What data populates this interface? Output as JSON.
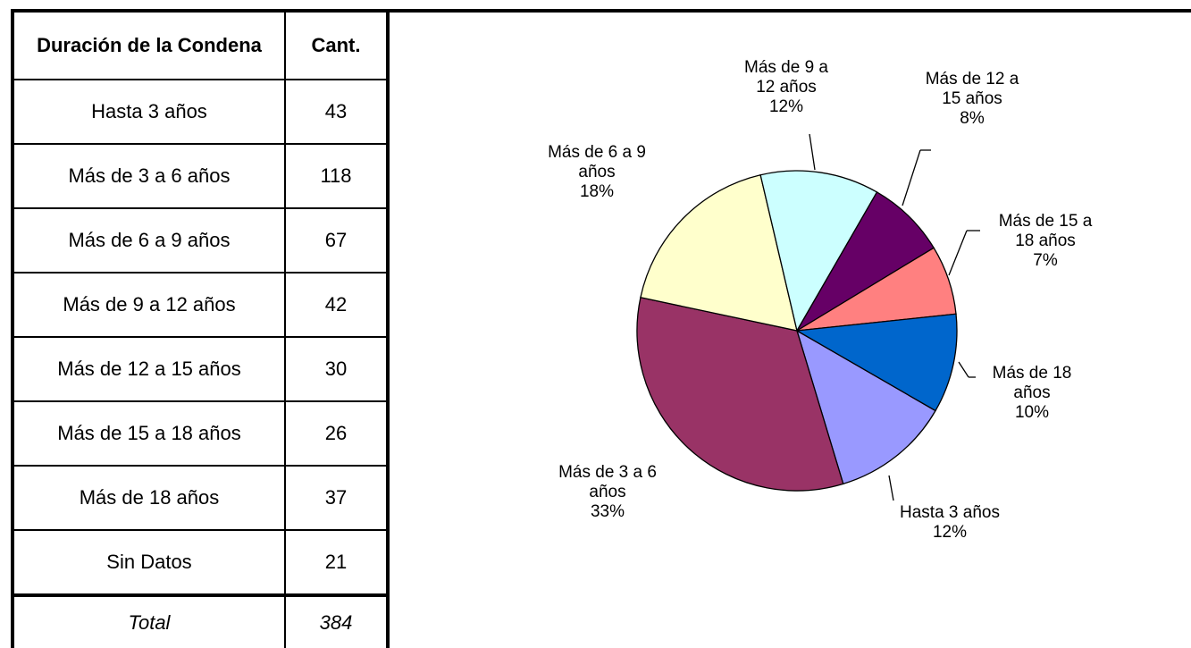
{
  "table": {
    "header": [
      "Duración de la Condena",
      "Cant."
    ],
    "rows": [
      [
        "Hasta 3 años",
        43
      ],
      [
        "Más de 3 a 6 años",
        118
      ],
      [
        "Más de 6 a 9 años",
        67
      ],
      [
        "Más de 9 a 12 años",
        42
      ],
      [
        "Más de 12 a 15 años",
        30
      ],
      [
        "Más de 15 a 18 años",
        26
      ],
      [
        "Más de 18 años",
        37
      ],
      [
        "Sin Datos",
        21
      ]
    ],
    "total": [
      "Total",
      384
    ]
  },
  "chart_data": {
    "type": "pie",
    "categories": [
      "Hasta 3 años",
      "Más de 3 a 6 años",
      "Más de 6 a 9 años",
      "Más de 9 a 12 años",
      "Más de 12 a 15 años",
      "Más de 15 a 18 años",
      "Más de 18 años"
    ],
    "values": [
      12,
      33,
      18,
      12,
      8,
      7,
      10
    ],
    "value_labels": [
      "12%",
      "33%",
      "18%",
      "12%",
      "8%",
      "7%",
      "10%"
    ],
    "colors": [
      "#9999ff",
      "#993366",
      "#ffffcc",
      "#ccffff",
      "#660066",
      "#ff8080",
      "#0066cc"
    ]
  }
}
